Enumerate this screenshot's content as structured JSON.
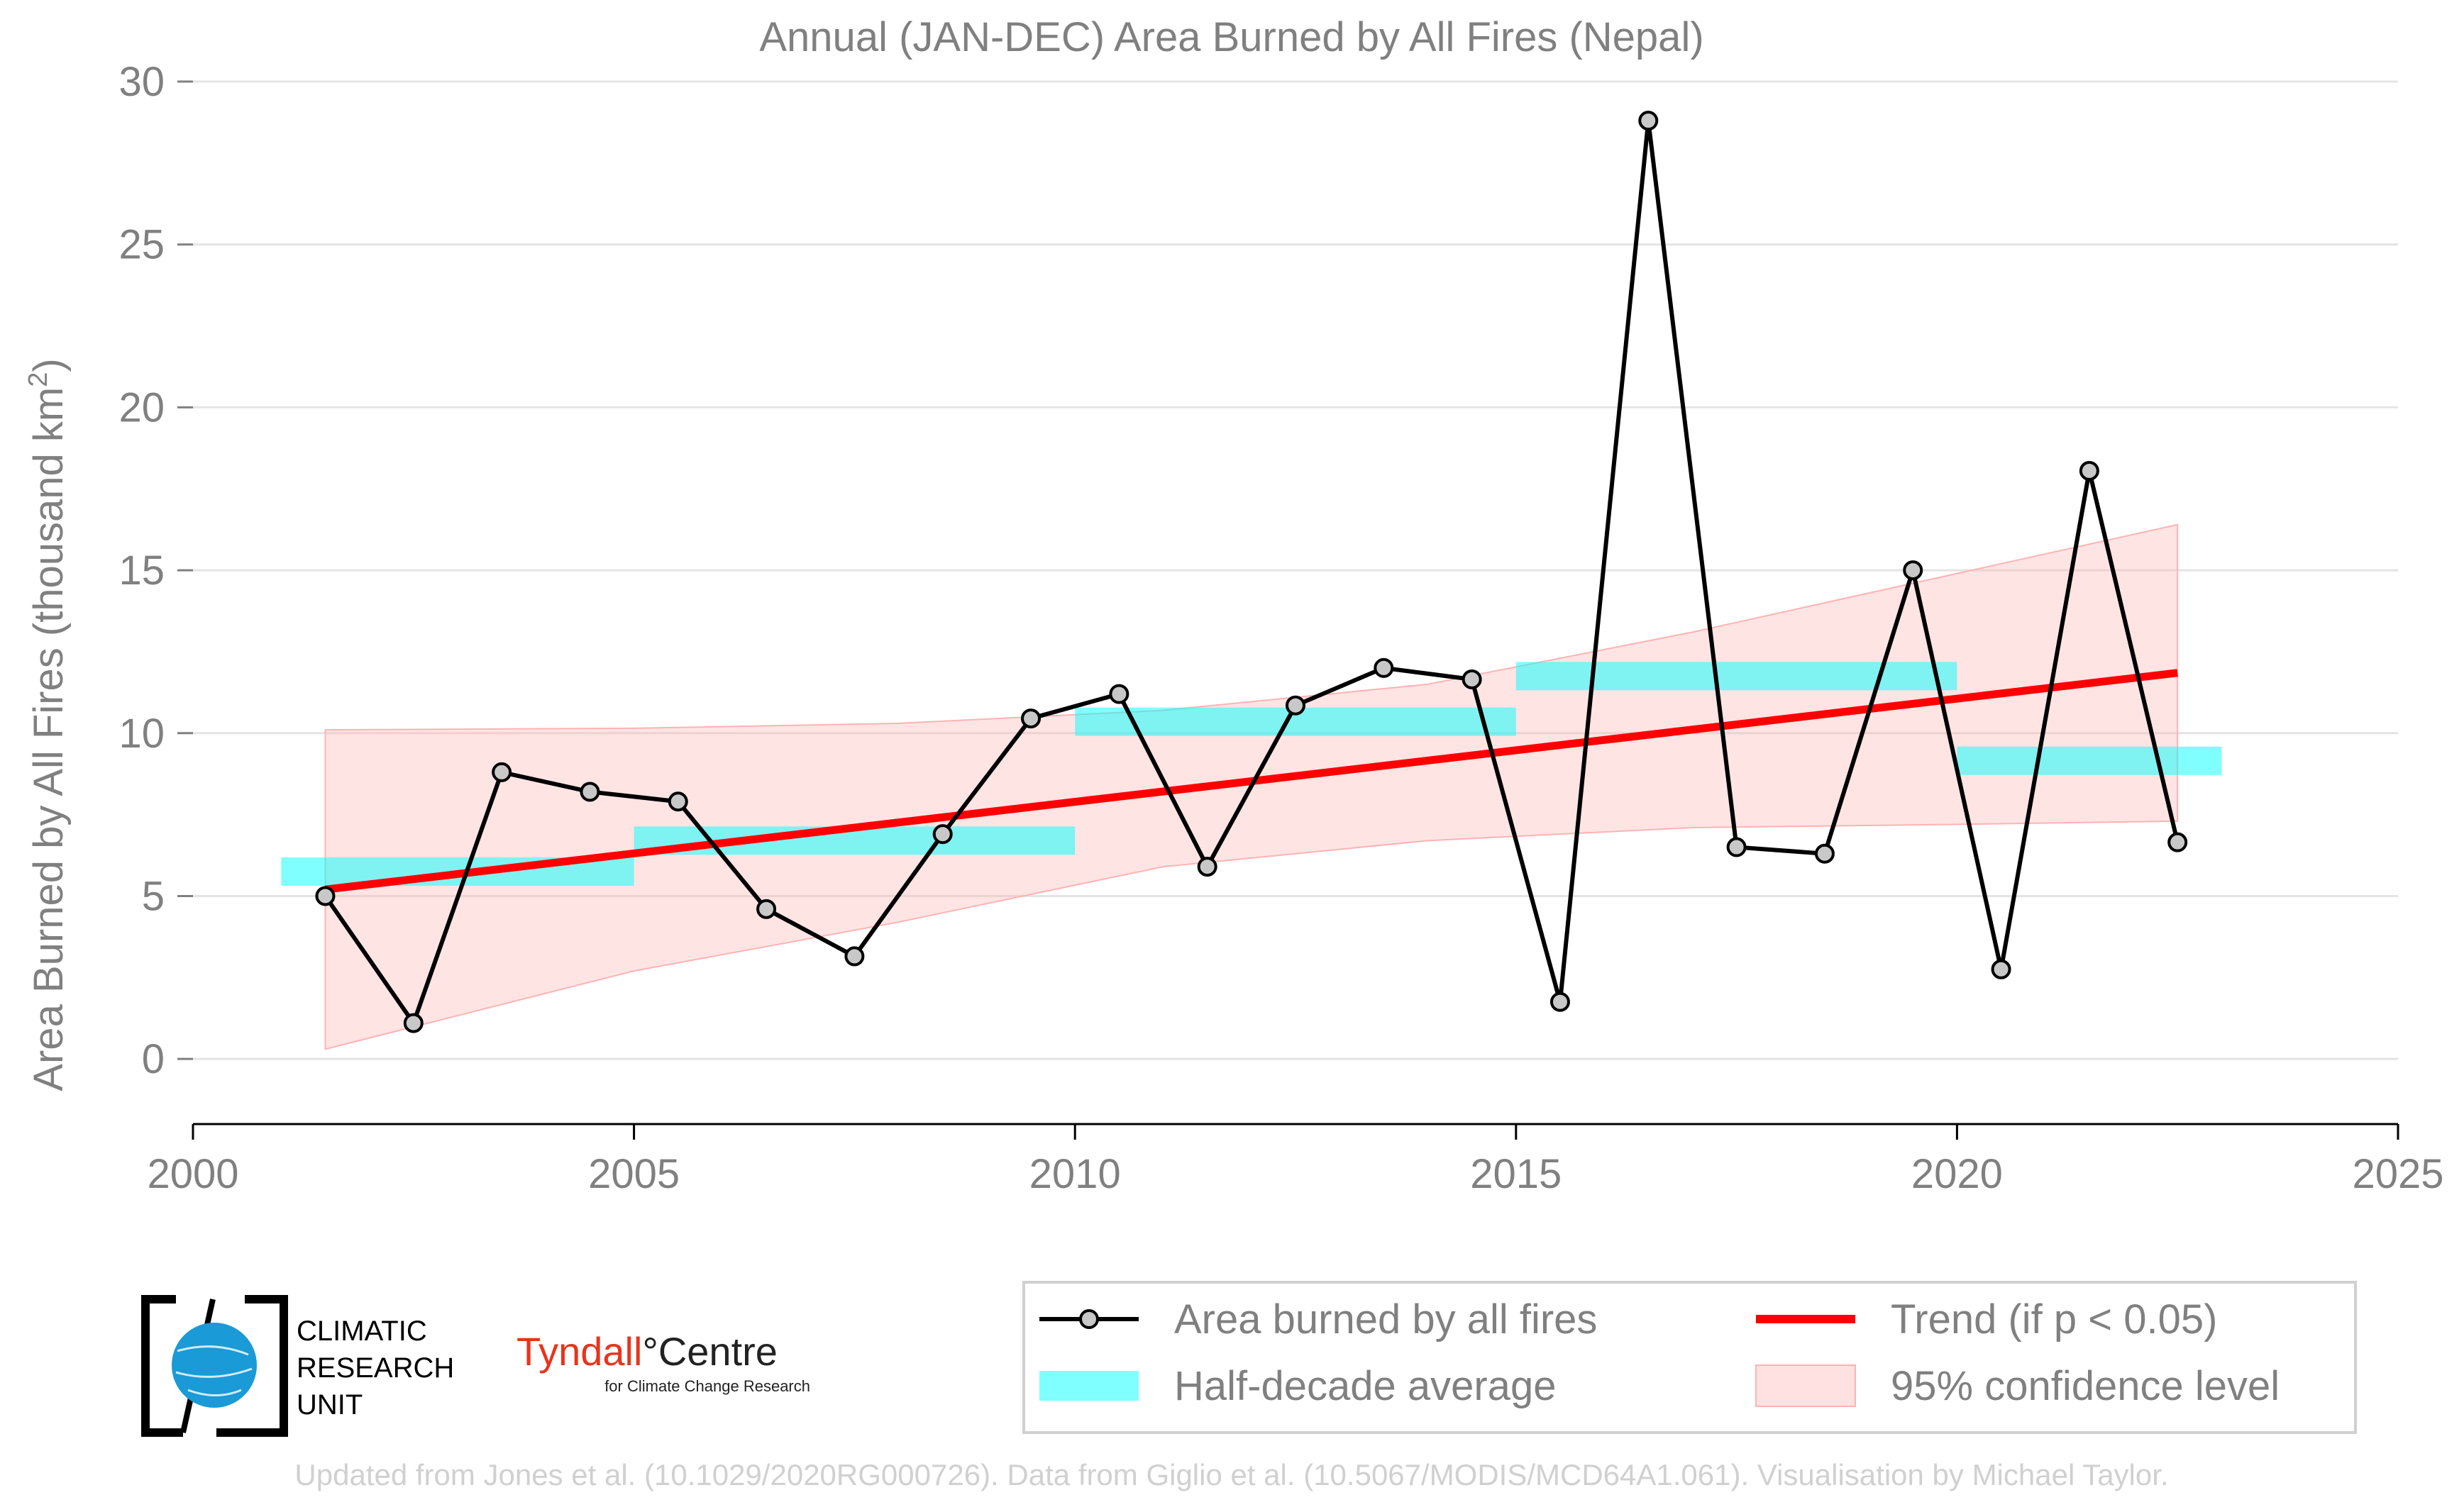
{
  "chart_data": {
    "type": "line",
    "title": "Annual (JAN-DEC) Area Burned by All Fires (Nepal)",
    "ylabel": "Area Burned by All Fires (thousand km",
    "ylabel_sup": "2",
    "ylabel_end": ")",
    "xlim": [
      2000,
      2025
    ],
    "ylim": [
      -2,
      30
    ],
    "xticks": [
      2000,
      2005,
      2010,
      2015,
      2020,
      2025
    ],
    "yticks": [
      0,
      5,
      10,
      15,
      20,
      25,
      30
    ],
    "grid": true,
    "series": [
      {
        "name": "Area burned by all fires",
        "color": "#000000",
        "marker_fill": "#c8c8c8",
        "x": [
          2001.5,
          2002.5,
          2003.5,
          2004.5,
          2005.5,
          2006.5,
          2007.5,
          2008.5,
          2009.5,
          2010.5,
          2011.5,
          2012.5,
          2013.5,
          2014.5,
          2015.5,
          2016.5,
          2017.5,
          2018.5,
          2019.5,
          2020.5,
          2021.5,
          2022.5
        ],
        "y": [
          5.0,
          1.1,
          8.8,
          8.2,
          7.9,
          4.6,
          3.15,
          6.9,
          10.45,
          11.2,
          5.9,
          10.85,
          12.0,
          11.65,
          1.75,
          28.8,
          6.5,
          6.3,
          15.0,
          2.75,
          18.05,
          6.65
        ]
      },
      {
        "name": "Half-decade average",
        "color": "#00ffff",
        "segments": [
          {
            "x0": 2001,
            "x1": 2005,
            "y": 5.75
          },
          {
            "x0": 2005,
            "x1": 2010,
            "y": 6.7
          },
          {
            "x0": 2010,
            "x1": 2015,
            "y": 10.35
          },
          {
            "x0": 2015,
            "x1": 2020,
            "y": 11.75
          },
          {
            "x0": 2020,
            "x1": 2023,
            "y": 9.15
          }
        ]
      },
      {
        "name": "Trend (if p < 0.05)",
        "color": "#ff0000",
        "x": [
          2001.5,
          2022.5
        ],
        "y": [
          5.2,
          11.85
        ]
      },
      {
        "name": "95% confidence level",
        "color": "#ffb3b3",
        "x": [
          2001.5,
          2005,
          2008,
          2011,
          2014,
          2017,
          2020,
          2022.5
        ],
        "upper": [
          10.1,
          10.15,
          10.3,
          10.7,
          11.5,
          13.1,
          14.9,
          16.4
        ],
        "lower": [
          0.3,
          2.7,
          4.2,
          5.9,
          6.7,
          7.1,
          7.2,
          7.3
        ]
      }
    ],
    "legend_position": "bottom-right"
  },
  "legend": {
    "items": [
      "Area burned by all fires",
      "Trend (if p < 0.05)",
      "Half-decade average",
      "95% confidence level"
    ]
  },
  "logos": {
    "cru_line1": "CLIMATIC",
    "cru_line2": "RESEARCH",
    "cru_line3": "UNIT",
    "tyndall_name": "Tyndall",
    "tyndall_degree": "°",
    "tyndall_centre": "Centre",
    "tyndall_sub": "for Climate Change Research"
  },
  "credit": "Updated from Jones et al. (10.1029/2020RG000726). Data from Giglio et al. (10.5067/MODIS/MCD64A1.061). Visualisation by Michael Taylor."
}
